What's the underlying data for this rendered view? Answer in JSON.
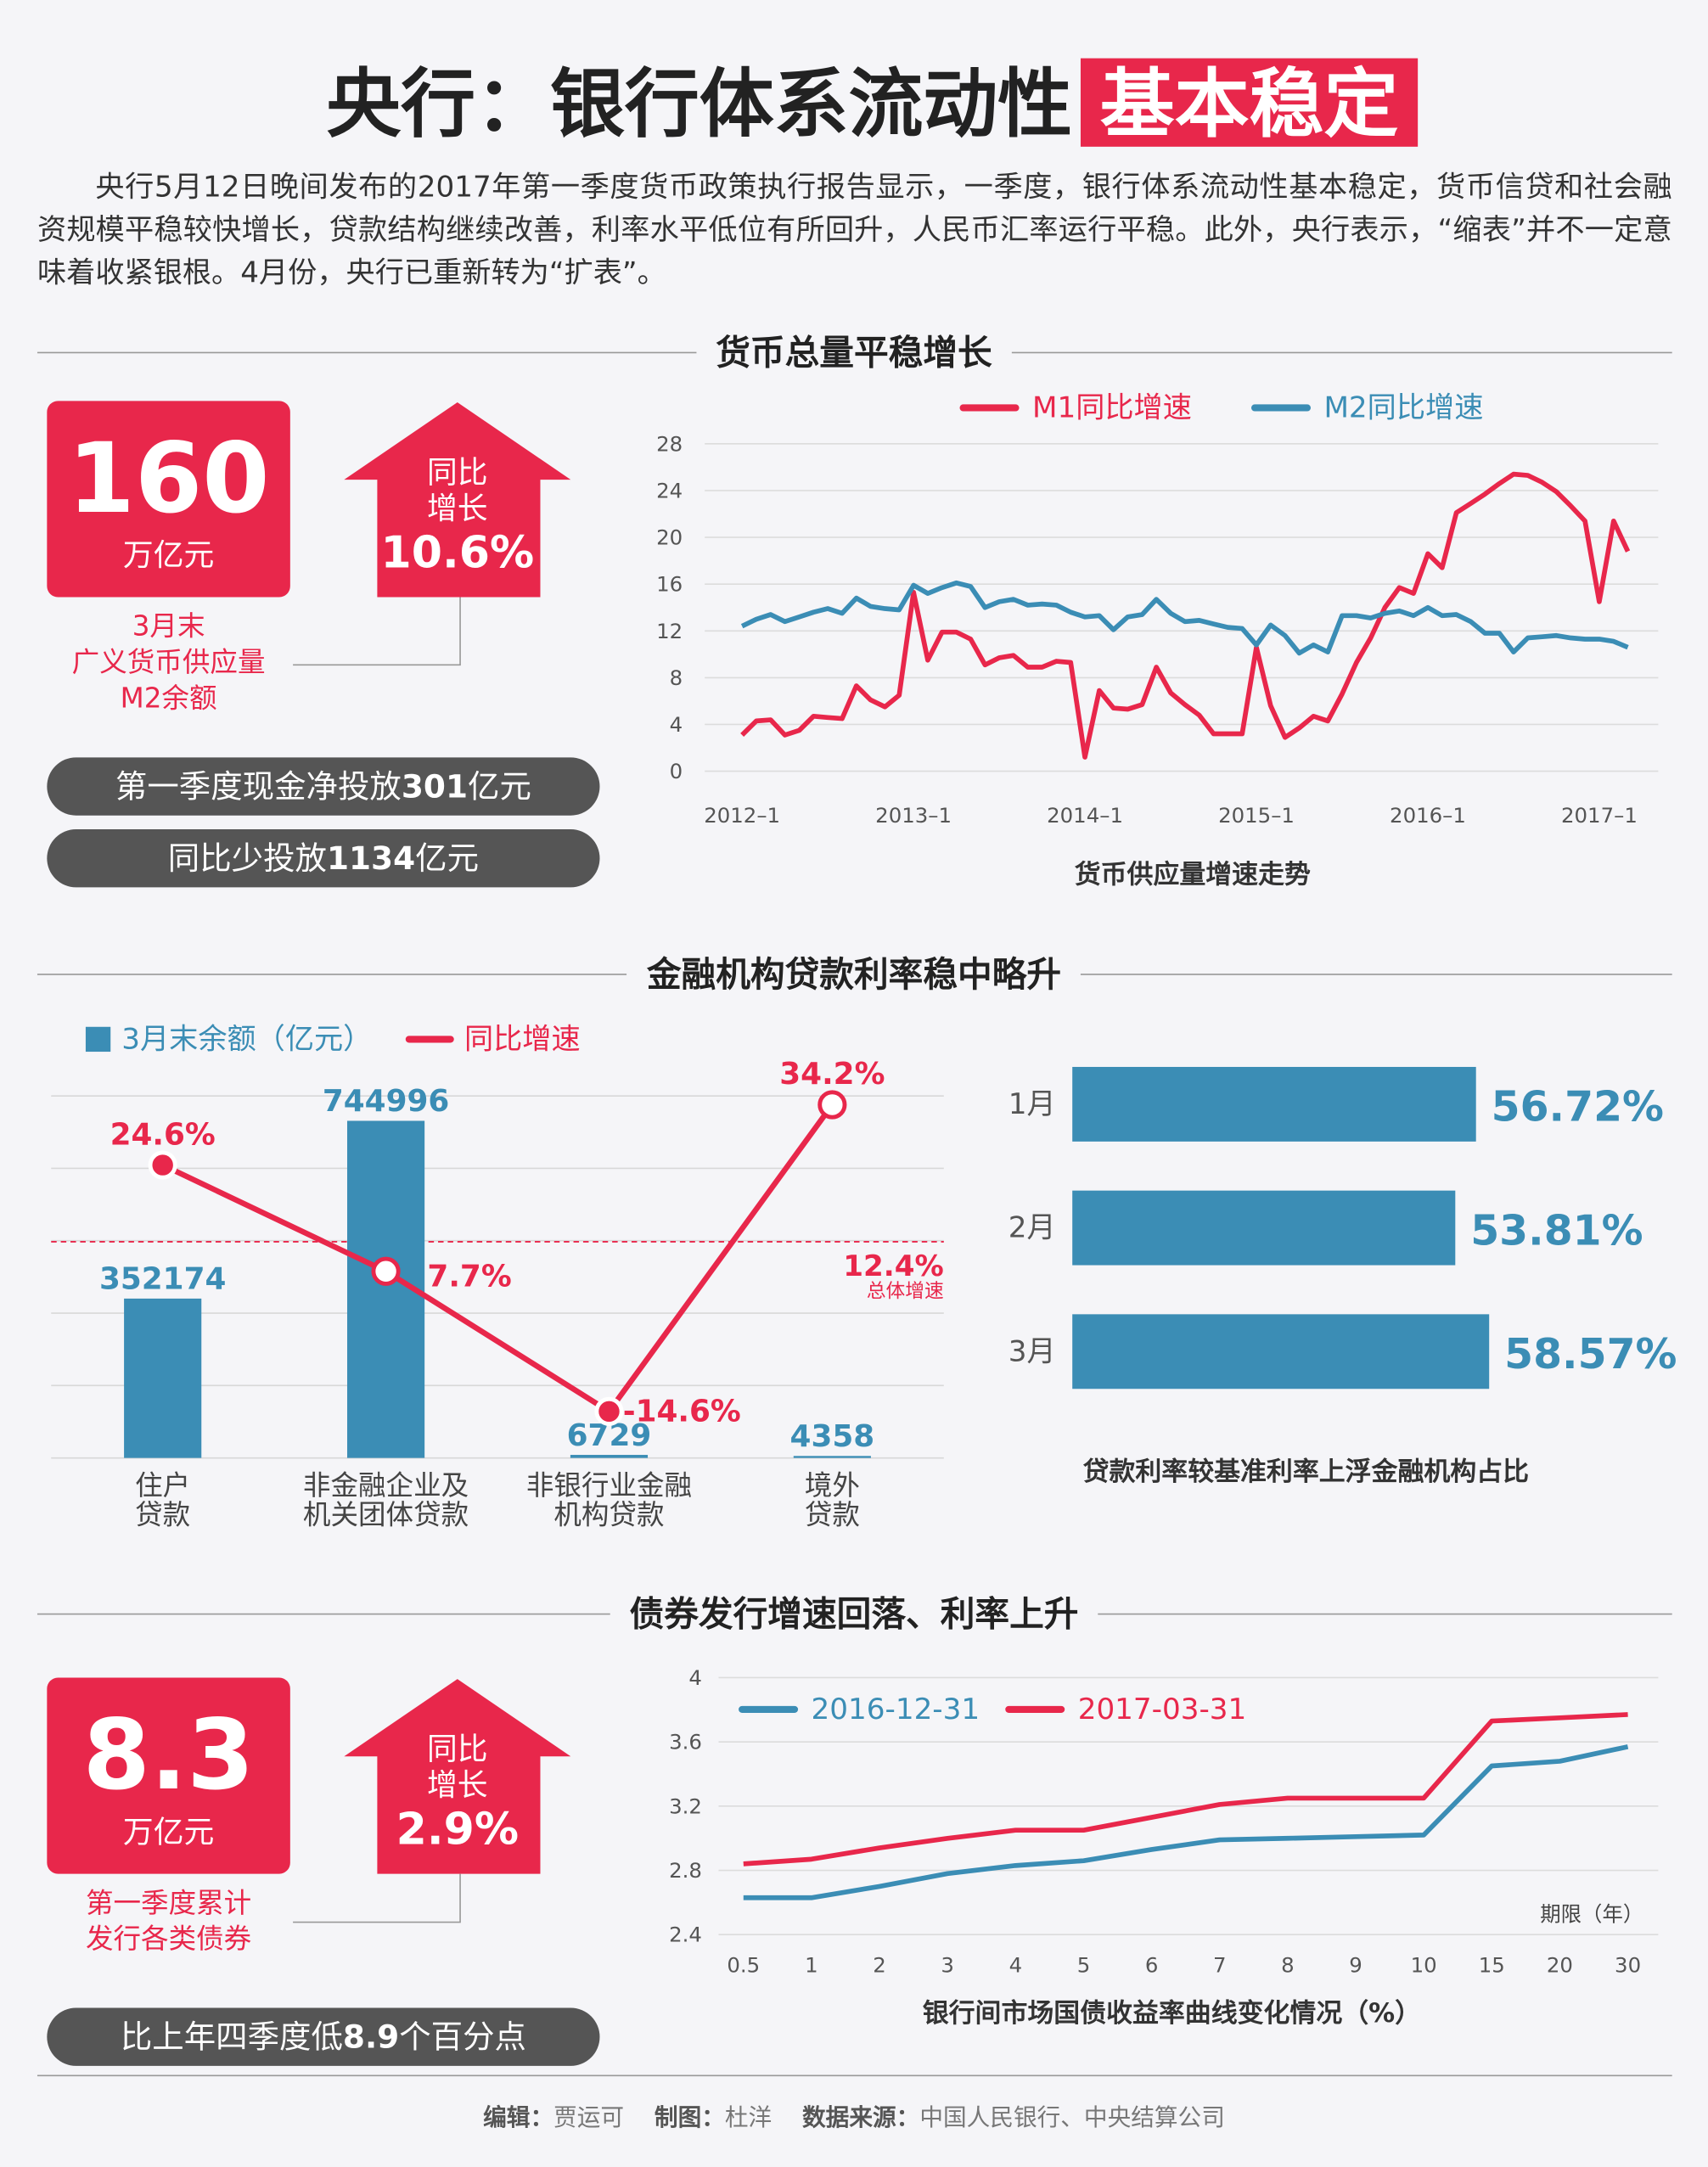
{
  "header": {
    "title": "央行：银行体系流动性",
    "highlight": "基本稳定",
    "intro": "央行5月12日晚间发布的2017年第一季度货币政策执行报告显示，一季度，银行体系流动性基本稳定，货币信贷和社会融资规模平稳较快增长，贷款结构继续改善，利率水平低位有所回升，人民币汇率运行平稳。此外，央行表示，“缩表”并不一定意味着收紧银根。4月份，央行已重新转为“扩表”。"
  },
  "sections": [
    {
      "heading": "货币总量平稳增长"
    },
    {
      "heading": "金融机构贷款利率稳中略升"
    },
    {
      "heading": "债券发行增速回落、利率上升"
    }
  ],
  "stats": [
    {
      "number": "160",
      "unit": "万亿元",
      "arrow_lines": [
        "同比",
        "增长"
      ],
      "arrow_value": "10.6%",
      "caption": [
        "3月末",
        "广义货币供应量",
        "M2余额"
      ],
      "pills": [
        [
          "第一季度现金净投放",
          "301",
          "亿元"
        ],
        [
          "同比少投放",
          "1134",
          "亿元"
        ]
      ]
    },
    {
      "number": "8.3",
      "unit": "万亿元",
      "arrow_lines": [
        "同比",
        "增长"
      ],
      "arrow_value": "2.9%",
      "caption": [
        "第一季度累计",
        "发行各类债券"
      ],
      "pills": [
        [
          "比上年四季度低",
          "8.9",
          "个百分点"
        ]
      ]
    }
  ],
  "chart_data": [
    {
      "type": "line",
      "xlabel": "货币供应量增速走势",
      "categories": [
        "2012–1",
        null,
        null,
        null,
        null,
        null,
        null,
        null,
        null,
        null,
        null,
        null,
        "2013–1",
        null,
        null,
        null,
        null,
        null,
        null,
        null,
        null,
        null,
        null,
        null,
        "2014–1",
        null,
        null,
        null,
        null,
        null,
        null,
        null,
        null,
        null,
        null,
        null,
        "2015–1",
        null,
        null,
        null,
        null,
        null,
        null,
        null,
        null,
        null,
        null,
        null,
        "2016–1",
        null,
        null,
        null,
        null,
        null,
        null,
        null,
        null,
        null,
        null,
        null,
        "2017–1",
        null,
        null
      ],
      "series": [
        {
          "name": "M1同比增速",
          "color": "#e8274b",
          "values": [
            3.1,
            4.3,
            4.4,
            3.1,
            3.5,
            4.7,
            4.6,
            4.5,
            7.3,
            6.1,
            5.5,
            6.5,
            15.3,
            9.5,
            11.9,
            11.9,
            11.3,
            9.1,
            9.7,
            9.9,
            8.9,
            8.9,
            9.4,
            9.3,
            1.2,
            6.9,
            5.4,
            5.3,
            5.7,
            8.9,
            6.7,
            5.7,
            4.8,
            3.2,
            3.2,
            3.2,
            10.6,
            5.6,
            2.9,
            3.7,
            4.7,
            4.3,
            6.6,
            9.3,
            11.4,
            14.0,
            15.7,
            15.2,
            18.6,
            17.4,
            22.1,
            22.9,
            23.7,
            24.6,
            25.4,
            25.3,
            24.7,
            23.9,
            22.7,
            21.4,
            14.5,
            21.4,
            18.8
          ]
        },
        {
          "name": "M2同比增速",
          "color": "#3b8db5",
          "values": [
            12.4,
            13.0,
            13.4,
            12.8,
            13.2,
            13.6,
            13.9,
            13.5,
            14.8,
            14.1,
            13.9,
            13.8,
            15.9,
            15.2,
            15.7,
            16.1,
            15.8,
            14.0,
            14.5,
            14.7,
            14.2,
            14.3,
            14.2,
            13.6,
            13.2,
            13.3,
            12.1,
            13.2,
            13.4,
            14.7,
            13.5,
            12.8,
            12.9,
            12.6,
            12.3,
            12.2,
            10.8,
            12.5,
            11.6,
            10.1,
            10.8,
            10.2,
            13.3,
            13.3,
            13.1,
            13.5,
            13.7,
            13.3,
            14.0,
            13.3,
            13.4,
            12.8,
            11.8,
            11.8,
            10.2,
            11.4,
            11.5,
            11.6,
            11.4,
            11.3,
            11.3,
            11.1,
            10.6
          ]
        }
      ],
      "ylim": [
        0,
        28
      ],
      "yticks": [
        0,
        4,
        8,
        12,
        16,
        20,
        24,
        28
      ],
      "grid": true
    },
    {
      "type": "combo",
      "categories": [
        [
          "住户",
          "贷款"
        ],
        [
          "非金融企业及",
          "机关团体贷款"
        ],
        [
          "非银行业金融",
          "机构贷款"
        ],
        [
          "境外",
          "贷款"
        ]
      ],
      "series": [
        {
          "name": "3月末余额（亿元）",
          "color": "#3b8db5",
          "values": [
            352174,
            744996,
            6729,
            4358
          ]
        },
        {
          "name": "同比增速",
          "color": "#e8274b",
          "axis": "y2",
          "values": [
            24.6,
            7.7,
            -14.6,
            34.2
          ],
          "value_labels": [
            "24.6%",
            "7.7%",
            "-14.6%",
            "34.2%"
          ]
        }
      ],
      "ylim": [
        0,
        800000
      ],
      "yticks": [
        0,
        160000,
        320000,
        480000,
        640000,
        800000
      ],
      "grid": true,
      "y2lim": [
        -22,
        35.6
      ],
      "reference": {
        "value": 12.4,
        "label": "12.4%",
        "note": "总体增速"
      }
    },
    {
      "type": "hbar",
      "xlabel": "贷款利率较基准利率上浮金融机构占比",
      "categories": [
        "1月",
        "2月",
        "3月"
      ],
      "values": [
        56.72,
        53.81,
        58.57
      ],
      "value_labels": [
        "56.72%",
        "53.81%",
        "58.57%"
      ],
      "color": "#3b8db5",
      "xlim": [
        0,
        100
      ]
    },
    {
      "type": "line",
      "xlabel": "银行间市场国债收益率曲线变化情况（%）",
      "annotation": "期限（年）",
      "categories": [
        "0.5",
        "1",
        "2",
        "3",
        "4",
        "5",
        "6",
        "7",
        "8",
        "9",
        "10",
        "15",
        "20",
        "30"
      ],
      "series": [
        {
          "name": "2016-12-31",
          "color": "#3b8db5",
          "values": [
            2.63,
            2.63,
            2.7,
            2.78,
            2.83,
            2.86,
            2.93,
            2.99,
            3.0,
            3.01,
            3.02,
            3.45,
            3.48,
            3.57
          ]
        },
        {
          "name": "2017-03-31",
          "color": "#e8274b",
          "values": [
            2.84,
            2.87,
            2.94,
            3.0,
            3.05,
            3.05,
            3.13,
            3.21,
            3.25,
            3.25,
            3.25,
            3.73,
            3.75,
            3.77
          ]
        }
      ],
      "ylim": [
        2.4,
        4
      ],
      "yticks": [
        2.4,
        2.8,
        3.2,
        3.6,
        4
      ],
      "grid": true
    }
  ],
  "footer": [
    [
      "编辑：",
      "贾运可"
    ],
    [
      "制图：",
      "杜洋"
    ],
    [
      "数据来源：",
      "中国人民银行、中央结算公司"
    ]
  ]
}
